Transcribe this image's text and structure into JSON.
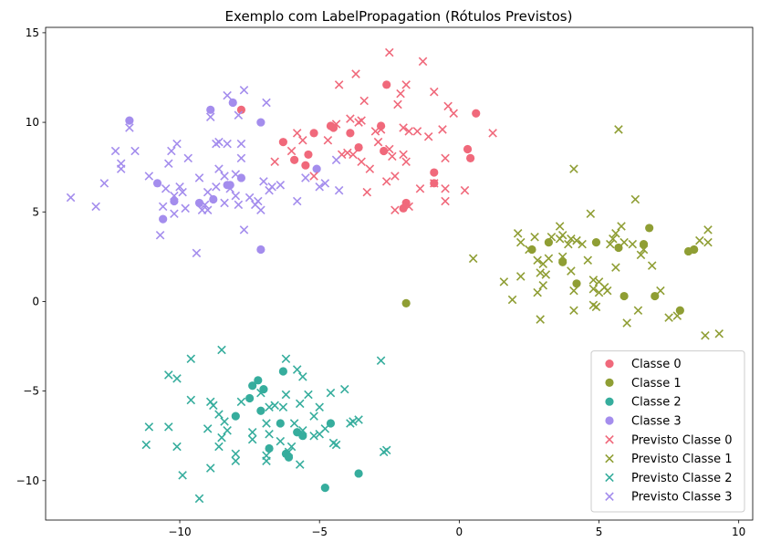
{
  "chart_data": {
    "type": "scatter",
    "title": "Exemplo com LabelPropagation (Rótulos Previstos)",
    "xlabel": "",
    "ylabel": "",
    "xlim": [
      -14.8,
      10.5
    ],
    "ylim": [
      -12.2,
      15.3
    ],
    "xticks": [
      -10,
      -5,
      0,
      5,
      10
    ],
    "yticks": [
      -10,
      -5,
      0,
      5,
      10,
      15
    ],
    "xtick_labels": [
      "−10",
      "−5",
      "0",
      "5",
      "10"
    ],
    "ytick_labels": [
      "−10",
      "−5",
      "0",
      "5",
      "10",
      "15"
    ],
    "grid": false,
    "legend_position": "lower-right",
    "series": [
      {
        "name": "Classe 0",
        "marker": "circle",
        "color": "#f0697b",
        "points": [
          [
            -7.8,
            10.7
          ],
          [
            -6.3,
            8.9
          ],
          [
            -5.9,
            7.9
          ],
          [
            -5.5,
            7.6
          ],
          [
            -5.4,
            8.2
          ],
          [
            -5.2,
            9.4
          ],
          [
            -4.6,
            9.8
          ],
          [
            -4.5,
            9.7
          ],
          [
            -3.9,
            9.4
          ],
          [
            -3.6,
            8.6
          ],
          [
            -2.8,
            9.8
          ],
          [
            -2.7,
            8.4
          ],
          [
            -2.6,
            12.1
          ],
          [
            -2.0,
            5.2
          ],
          [
            -1.9,
            5.5
          ],
          [
            -0.9,
            7.2
          ],
          [
            -0.9,
            6.6
          ],
          [
            0.3,
            8.5
          ],
          [
            0.4,
            8.0
          ],
          [
            0.6,
            10.5
          ]
        ]
      },
      {
        "name": "Classe 1",
        "marker": "circle",
        "color": "#8f9e34",
        "points": [
          [
            -1.9,
            -0.1
          ],
          [
            2.6,
            2.9
          ],
          [
            3.2,
            3.3
          ],
          [
            3.7,
            2.2
          ],
          [
            4.2,
            1.0
          ],
          [
            4.9,
            3.3
          ],
          [
            5.7,
            3.0
          ],
          [
            5.9,
            0.3
          ],
          [
            6.6,
            3.2
          ],
          [
            6.8,
            4.1
          ],
          [
            7.0,
            0.3
          ],
          [
            7.9,
            -0.5
          ],
          [
            8.2,
            2.8
          ],
          [
            8.4,
            2.9
          ]
        ]
      },
      {
        "name": "Classe 2",
        "marker": "circle",
        "color": "#36ad9d",
        "points": [
          [
            -8.0,
            -6.4
          ],
          [
            -7.5,
            -5.4
          ],
          [
            -7.4,
            -4.7
          ],
          [
            -7.2,
            -4.4
          ],
          [
            -7.1,
            -6.1
          ],
          [
            -7.0,
            -4.9
          ],
          [
            -6.8,
            -8.2
          ],
          [
            -6.4,
            -6.8
          ],
          [
            -6.3,
            -3.9
          ],
          [
            -6.2,
            -8.5
          ],
          [
            -6.1,
            -8.7
          ],
          [
            -5.8,
            -7.3
          ],
          [
            -5.6,
            -7.5
          ],
          [
            -4.8,
            -10.4
          ],
          [
            -4.6,
            -6.8
          ],
          [
            -3.6,
            -9.6
          ]
        ]
      },
      {
        "name": "Classe 3",
        "marker": "circle",
        "color": "#a48ded",
        "points": [
          [
            -11.8,
            10.1
          ],
          [
            -10.8,
            6.6
          ],
          [
            -10.6,
            4.6
          ],
          [
            -10.2,
            5.6
          ],
          [
            -9.3,
            5.5
          ],
          [
            -8.9,
            10.7
          ],
          [
            -8.8,
            5.7
          ],
          [
            -8.3,
            6.5
          ],
          [
            -8.2,
            6.5
          ],
          [
            -8.1,
            11.1
          ],
          [
            -7.8,
            6.9
          ],
          [
            -7.1,
            10.0
          ],
          [
            -7.1,
            2.9
          ],
          [
            -5.1,
            7.4
          ]
        ]
      },
      {
        "name": "Previsto Classe 0",
        "marker": "x",
        "color": "#f0697b",
        "points": [
          [
            -6.6,
            7.8
          ],
          [
            -6.0,
            8.4
          ],
          [
            -5.8,
            9.4
          ],
          [
            -5.6,
            9.0
          ],
          [
            -5.2,
            7.0
          ],
          [
            -4.7,
            9.0
          ],
          [
            -4.4,
            9.9
          ],
          [
            -4.3,
            12.1
          ],
          [
            -4.2,
            8.2
          ],
          [
            -4.0,
            8.3
          ],
          [
            -3.9,
            10.2
          ],
          [
            -3.8,
            8.2
          ],
          [
            -3.7,
            12.7
          ],
          [
            -3.6,
            10.0
          ],
          [
            -3.5,
            10.1
          ],
          [
            -3.5,
            7.8
          ],
          [
            -3.4,
            11.2
          ],
          [
            -3.3,
            6.1
          ],
          [
            -3.2,
            7.4
          ],
          [
            -3.0,
            9.5
          ],
          [
            -2.9,
            8.9
          ],
          [
            -2.8,
            9.6
          ],
          [
            -2.6,
            6.7
          ],
          [
            -2.5,
            13.9
          ],
          [
            -2.5,
            8.5
          ],
          [
            -2.4,
            8.1
          ],
          [
            -2.3,
            7.0
          ],
          [
            -2.3,
            5.1
          ],
          [
            -2.2,
            11.0
          ],
          [
            -2.1,
            11.6
          ],
          [
            -2.0,
            9.7
          ],
          [
            -2.0,
            8.2
          ],
          [
            -1.9,
            12.1
          ],
          [
            -1.9,
            7.8
          ],
          [
            -1.8,
            9.5
          ],
          [
            -1.8,
            5.3
          ],
          [
            -1.5,
            9.5
          ],
          [
            -1.4,
            6.3
          ],
          [
            -1.3,
            13.4
          ],
          [
            -1.1,
            9.2
          ],
          [
            -0.9,
            11.7
          ],
          [
            -0.9,
            6.6
          ],
          [
            -0.6,
            9.6
          ],
          [
            -0.5,
            6.3
          ],
          [
            -0.5,
            5.6
          ],
          [
            -0.5,
            8.0
          ],
          [
            -0.4,
            10.9
          ],
          [
            -0.2,
            10.5
          ],
          [
            0.2,
            6.2
          ],
          [
            1.2,
            9.4
          ]
        ]
      },
      {
        "name": "Previsto Classe 1",
        "marker": "x",
        "color": "#8f9e34",
        "points": [
          [
            0.5,
            2.4
          ],
          [
            1.6,
            1.1
          ],
          [
            1.9,
            0.1
          ],
          [
            2.1,
            3.8
          ],
          [
            2.2,
            3.3
          ],
          [
            2.2,
            1.4
          ],
          [
            2.5,
            2.9
          ],
          [
            2.7,
            3.6
          ],
          [
            2.8,
            2.3
          ],
          [
            2.8,
            0.5
          ],
          [
            2.9,
            -1.0
          ],
          [
            2.9,
            1.6
          ],
          [
            3.0,
            0.9
          ],
          [
            3.0,
            2.1
          ],
          [
            3.1,
            1.5
          ],
          [
            3.2,
            2.4
          ],
          [
            3.3,
            3.6
          ],
          [
            3.6,
            3.5
          ],
          [
            3.6,
            4.2
          ],
          [
            3.7,
            2.5
          ],
          [
            3.7,
            3.7
          ],
          [
            3.9,
            3.2
          ],
          [
            4.0,
            3.5
          ],
          [
            4.0,
            1.7
          ],
          [
            4.1,
            7.4
          ],
          [
            4.1,
            0.6
          ],
          [
            4.1,
            -0.5
          ],
          [
            4.2,
            3.4
          ],
          [
            4.4,
            3.2
          ],
          [
            4.6,
            2.3
          ],
          [
            4.7,
            4.9
          ],
          [
            4.8,
            -0.2
          ],
          [
            4.8,
            0.7
          ],
          [
            4.8,
            1.2
          ],
          [
            4.9,
            -0.3
          ],
          [
            5.0,
            0.5
          ],
          [
            5.0,
            1.1
          ],
          [
            5.2,
            0.8
          ],
          [
            5.3,
            0.6
          ],
          [
            5.4,
            3.2
          ],
          [
            5.5,
            3.5
          ],
          [
            5.6,
            1.9
          ],
          [
            5.6,
            3.8
          ],
          [
            5.7,
            9.6
          ],
          [
            5.8,
            4.2
          ],
          [
            5.9,
            3.3
          ],
          [
            6.0,
            -1.2
          ],
          [
            6.2,
            3.2
          ],
          [
            6.3,
            5.7
          ],
          [
            6.4,
            -0.5
          ],
          [
            6.5,
            2.6
          ],
          [
            6.6,
            2.9
          ],
          [
            6.9,
            2.0
          ],
          [
            7.2,
            0.6
          ],
          [
            7.5,
            -0.9
          ],
          [
            7.8,
            -0.8
          ],
          [
            8.6,
            3.4
          ],
          [
            8.8,
            -1.9
          ],
          [
            8.9,
            3.3
          ],
          [
            8.9,
            4.0
          ],
          [
            9.3,
            -1.8
          ]
        ]
      },
      {
        "name": "Previsto Classe 2",
        "marker": "x",
        "color": "#36ad9d",
        "points": [
          [
            -11.2,
            -8.0
          ],
          [
            -11.1,
            -7.0
          ],
          [
            -10.4,
            -4.1
          ],
          [
            -10.4,
            -7.0
          ],
          [
            -10.1,
            -4.3
          ],
          [
            -10.1,
            -8.1
          ],
          [
            -9.9,
            -9.7
          ],
          [
            -9.6,
            -3.2
          ],
          [
            -9.6,
            -5.5
          ],
          [
            -9.3,
            -11.0
          ],
          [
            -9.0,
            -7.1
          ],
          [
            -8.9,
            -9.3
          ],
          [
            -8.9,
            -5.6
          ],
          [
            -8.8,
            -5.8
          ],
          [
            -8.6,
            -6.3
          ],
          [
            -8.6,
            -8.1
          ],
          [
            -8.5,
            -2.7
          ],
          [
            -8.5,
            -7.6
          ],
          [
            -8.4,
            -6.7
          ],
          [
            -8.3,
            -7.2
          ],
          [
            -8.0,
            -8.5
          ],
          [
            -8.0,
            -8.9
          ],
          [
            -7.8,
            -5.6
          ],
          [
            -7.4,
            -7.3
          ],
          [
            -7.4,
            -7.7
          ],
          [
            -7.1,
            -5.1
          ],
          [
            -6.9,
            -8.6
          ],
          [
            -6.9,
            -8.9
          ],
          [
            -6.9,
            -6.8
          ],
          [
            -6.8,
            -7.4
          ],
          [
            -6.8,
            -5.9
          ],
          [
            -6.6,
            -5.8
          ],
          [
            -6.4,
            -7.8
          ],
          [
            -6.3,
            -5.9
          ],
          [
            -6.2,
            -3.2
          ],
          [
            -6.2,
            -5.2
          ],
          [
            -6.1,
            -8.4
          ],
          [
            -6.0,
            -8.1
          ],
          [
            -5.9,
            -6.8
          ],
          [
            -5.8,
            -3.8
          ],
          [
            -5.7,
            -5.7
          ],
          [
            -5.6,
            -4.2
          ],
          [
            -5.6,
            -7.2
          ],
          [
            -5.4,
            -5.2
          ],
          [
            -5.2,
            -6.4
          ],
          [
            -5.2,
            -7.5
          ],
          [
            -5.0,
            -5.9
          ],
          [
            -5.0,
            -7.4
          ],
          [
            -4.8,
            -7.1
          ],
          [
            -4.6,
            -5.1
          ],
          [
            -4.5,
            -7.9
          ],
          [
            -4.4,
            -8.0
          ],
          [
            -4.1,
            -4.9
          ],
          [
            -3.9,
            -6.8
          ],
          [
            -3.8,
            -6.7
          ],
          [
            -3.6,
            -6.6
          ],
          [
            -2.8,
            -3.3
          ],
          [
            -2.7,
            -8.4
          ],
          [
            -2.6,
            -8.3
          ],
          [
            -5.7,
            -9.1
          ]
        ]
      },
      {
        "name": "Previsto Classe 3",
        "marker": "x",
        "color": "#a48ded",
        "points": [
          [
            -13.9,
            5.8
          ],
          [
            -13.0,
            5.3
          ],
          [
            -12.7,
            6.6
          ],
          [
            -12.3,
            8.4
          ],
          [
            -12.1,
            7.4
          ],
          [
            -12.1,
            7.7
          ],
          [
            -11.8,
            9.7
          ],
          [
            -11.6,
            8.4
          ],
          [
            -11.1,
            7.0
          ],
          [
            -10.7,
            3.7
          ],
          [
            -10.6,
            5.3
          ],
          [
            -10.5,
            6.3
          ],
          [
            -10.4,
            7.7
          ],
          [
            -10.3,
            8.4
          ],
          [
            -10.2,
            5.9
          ],
          [
            -10.2,
            4.9
          ],
          [
            -10.1,
            8.8
          ],
          [
            -10.0,
            6.4
          ],
          [
            -9.9,
            6.1
          ],
          [
            -9.8,
            5.2
          ],
          [
            -9.7,
            8.0
          ],
          [
            -9.4,
            2.7
          ],
          [
            -9.3,
            6.9
          ],
          [
            -9.2,
            5.1
          ],
          [
            -9.1,
            5.4
          ],
          [
            -9.0,
            5.1
          ],
          [
            -9.0,
            6.1
          ],
          [
            -8.9,
            10.3
          ],
          [
            -8.7,
            8.8
          ],
          [
            -8.7,
            6.4
          ],
          [
            -8.6,
            7.4
          ],
          [
            -8.6,
            8.9
          ],
          [
            -8.4,
            7.0
          ],
          [
            -8.4,
            5.5
          ],
          [
            -8.3,
            8.8
          ],
          [
            -8.3,
            11.5
          ],
          [
            -8.2,
            6.3
          ],
          [
            -8.0,
            5.9
          ],
          [
            -8.0,
            7.1
          ],
          [
            -7.9,
            10.4
          ],
          [
            -7.9,
            5.4
          ],
          [
            -7.8,
            8.0
          ],
          [
            -7.8,
            8.8
          ],
          [
            -7.7,
            4.0
          ],
          [
            -7.7,
            11.8
          ],
          [
            -7.5,
            5.8
          ],
          [
            -7.3,
            5.4
          ],
          [
            -7.2,
            5.6
          ],
          [
            -7.1,
            5.1
          ],
          [
            -7.0,
            6.7
          ],
          [
            -6.9,
            11.1
          ],
          [
            -6.8,
            6.2
          ],
          [
            -6.7,
            6.4
          ],
          [
            -6.4,
            6.5
          ],
          [
            -5.8,
            5.6
          ],
          [
            -5.5,
            6.9
          ],
          [
            -5.0,
            6.4
          ],
          [
            -4.8,
            6.6
          ],
          [
            -4.4,
            7.9
          ],
          [
            -4.3,
            6.2
          ]
        ]
      }
    ]
  }
}
